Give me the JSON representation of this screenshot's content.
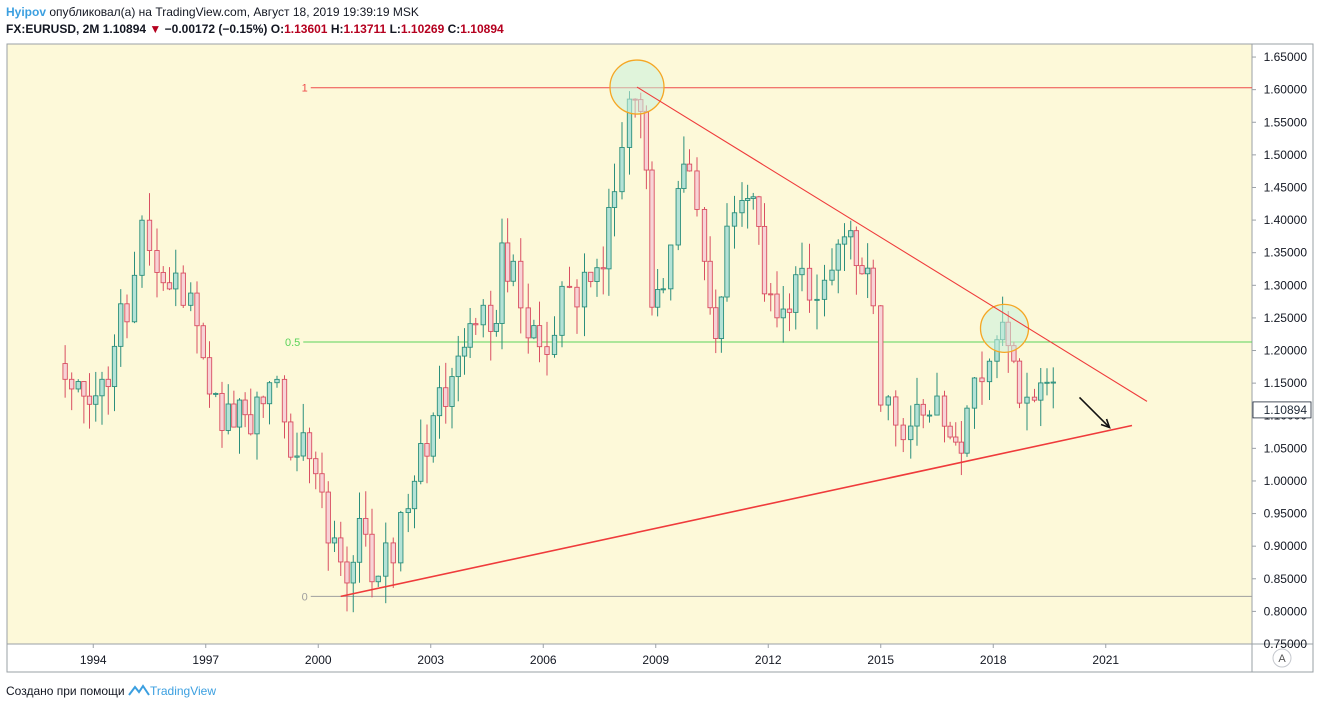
{
  "header": {
    "author": "Hyipov",
    "published_prefix": "опубликовал(а) на",
    "site": "TradingView.com,",
    "datetime": "Август 18, 2019 19:39:19 MSK",
    "symbol": "FX:EURUSD, 2M",
    "last": "1.10894",
    "change": "−0.00172 (−0.15%)",
    "o_label": "O:",
    "o_value": "1.13601",
    "h_label": "H:",
    "h_value": "1.13711",
    "l_label": "L:",
    "l_value": "1.10269",
    "c_label": "C:",
    "c_value": "1.10894"
  },
  "footer": {
    "created_with": "Создано при помощи",
    "brand": "TradingView"
  },
  "colors": {
    "background": "#fdf9d9",
    "up_body": "#b4e2d6",
    "up_border": "#2b8f7c",
    "down_body": "#f7d3d6",
    "down_border": "#d94f62",
    "fib_red": "#ee4a4a",
    "fib_green": "#5ad35a",
    "fib_zero": "#9e9e9e",
    "trend": "#ef3b3b",
    "circle_fill": "#c8f0dc",
    "circle_stroke": "#f5a623",
    "price_label": "#1f2937"
  },
  "chart_data": {
    "type": "candlestick",
    "symbol": "FX:EURUSD",
    "interval": "2M",
    "y_axis": {
      "range": [
        0.75,
        1.67
      ],
      "ticks": [
        "0.75000",
        "0.80000",
        "0.85000",
        "0.90000",
        "0.95000",
        "1.00000",
        "1.05000",
        "1.10000",
        "1.15000",
        "1.20000",
        "1.25000",
        "1.30000",
        "1.35000",
        "1.40000",
        "1.45000",
        "1.50000",
        "1.55000",
        "1.60000",
        "1.65000"
      ]
    },
    "x_axis": {
      "range": [
        1991.7,
        2024.9
      ],
      "ticks": [
        "1994",
        "1997",
        "2000",
        "2003",
        "2006",
        "2009",
        "2012",
        "2015",
        "2018",
        "2021"
      ]
    },
    "last_price": "1.10894",
    "auto_scale_label": "A",
    "fib_levels": [
      {
        "label": "1",
        "value": 1.603
      },
      {
        "label": "0.5",
        "value": 1.213
      },
      {
        "label": "0",
        "value": 0.823
      }
    ],
    "trendlines": [
      {
        "name": "resistance",
        "from": [
          2008.5,
          1.604
        ],
        "to": [
          2022.1,
          1.122
        ]
      },
      {
        "name": "support",
        "from": [
          2000.6,
          0.823
        ],
        "to": [
          2021.7,
          1.085
        ]
      }
    ],
    "arrow": {
      "from": [
        2020.3,
        1.128
      ],
      "to": [
        2021.1,
        1.082
      ]
    },
    "highlights": [
      {
        "center": [
          2008.5,
          1.604
        ],
        "radius": 27
      },
      {
        "center": [
          2018.3,
          1.234
        ],
        "radius": 24
      }
    ],
    "anchors": [
      [
        1993.25,
        1.18
      ],
      [
        1993.6,
        1.14
      ],
      [
        1993.9,
        1.12
      ],
      [
        1994.4,
        1.17
      ],
      [
        1994.9,
        1.27
      ],
      [
        1995.3,
        1.38
      ],
      [
        1995.7,
        1.35
      ],
      [
        1996.2,
        1.3
      ],
      [
        1996.6,
        1.27
      ],
      [
        1997.1,
        1.1
      ],
      [
        1997.6,
        1.1
      ],
      [
        1998.2,
        1.1
      ],
      [
        1998.7,
        1.18
      ],
      [
        1999.1,
        1.08
      ],
      [
        1999.6,
        1.05
      ],
      [
        2000.1,
        0.97
      ],
      [
        2000.6,
        0.85
      ],
      [
        2001.1,
        0.91
      ],
      [
        2001.6,
        0.86
      ],
      [
        2002.0,
        0.89
      ],
      [
        2002.4,
        0.99
      ],
      [
        2002.9,
        1.05
      ],
      [
        2003.4,
        1.14
      ],
      [
        2003.9,
        1.2
      ],
      [
        2004.2,
        1.25
      ],
      [
        2004.6,
        1.22
      ],
      [
        2004.9,
        1.33
      ],
      [
        2005.2,
        1.32
      ],
      [
        2005.6,
        1.22
      ],
      [
        2005.9,
        1.19
      ],
      [
        2006.3,
        1.25
      ],
      [
        2006.7,
        1.28
      ],
      [
        2007.1,
        1.32
      ],
      [
        2007.6,
        1.36
      ],
      [
        2007.9,
        1.45
      ],
      [
        2008.3,
        1.57
      ],
      [
        2008.6,
        1.59
      ],
      [
        2008.9,
        1.3
      ],
      [
        2009.2,
        1.28
      ],
      [
        2009.6,
        1.43
      ],
      [
        2009.9,
        1.48
      ],
      [
        2010.3,
        1.36
      ],
      [
        2010.6,
        1.22
      ],
      [
        2010.9,
        1.37
      ],
      [
        2011.3,
        1.46
      ],
      [
        2011.6,
        1.42
      ],
      [
        2011.9,
        1.3
      ],
      [
        2012.4,
        1.25
      ],
      [
        2012.9,
        1.31
      ],
      [
        2013.3,
        1.3
      ],
      [
        2013.7,
        1.35
      ],
      [
        2014.2,
        1.38
      ],
      [
        2014.5,
        1.35
      ],
      [
        2014.8,
        1.25
      ],
      [
        2015.0,
        1.12
      ],
      [
        2015.4,
        1.11
      ],
      [
        2015.8,
        1.08
      ],
      [
        2016.3,
        1.13
      ],
      [
        2016.7,
        1.09
      ],
      [
        2017.0,
        1.05
      ],
      [
        2017.3,
        1.1
      ],
      [
        2017.7,
        1.18
      ],
      [
        2018.1,
        1.23
      ],
      [
        2018.4,
        1.2
      ],
      [
        2018.7,
        1.15
      ],
      [
        2019.1,
        1.14
      ],
      [
        2019.6,
        1.12
      ]
    ]
  }
}
